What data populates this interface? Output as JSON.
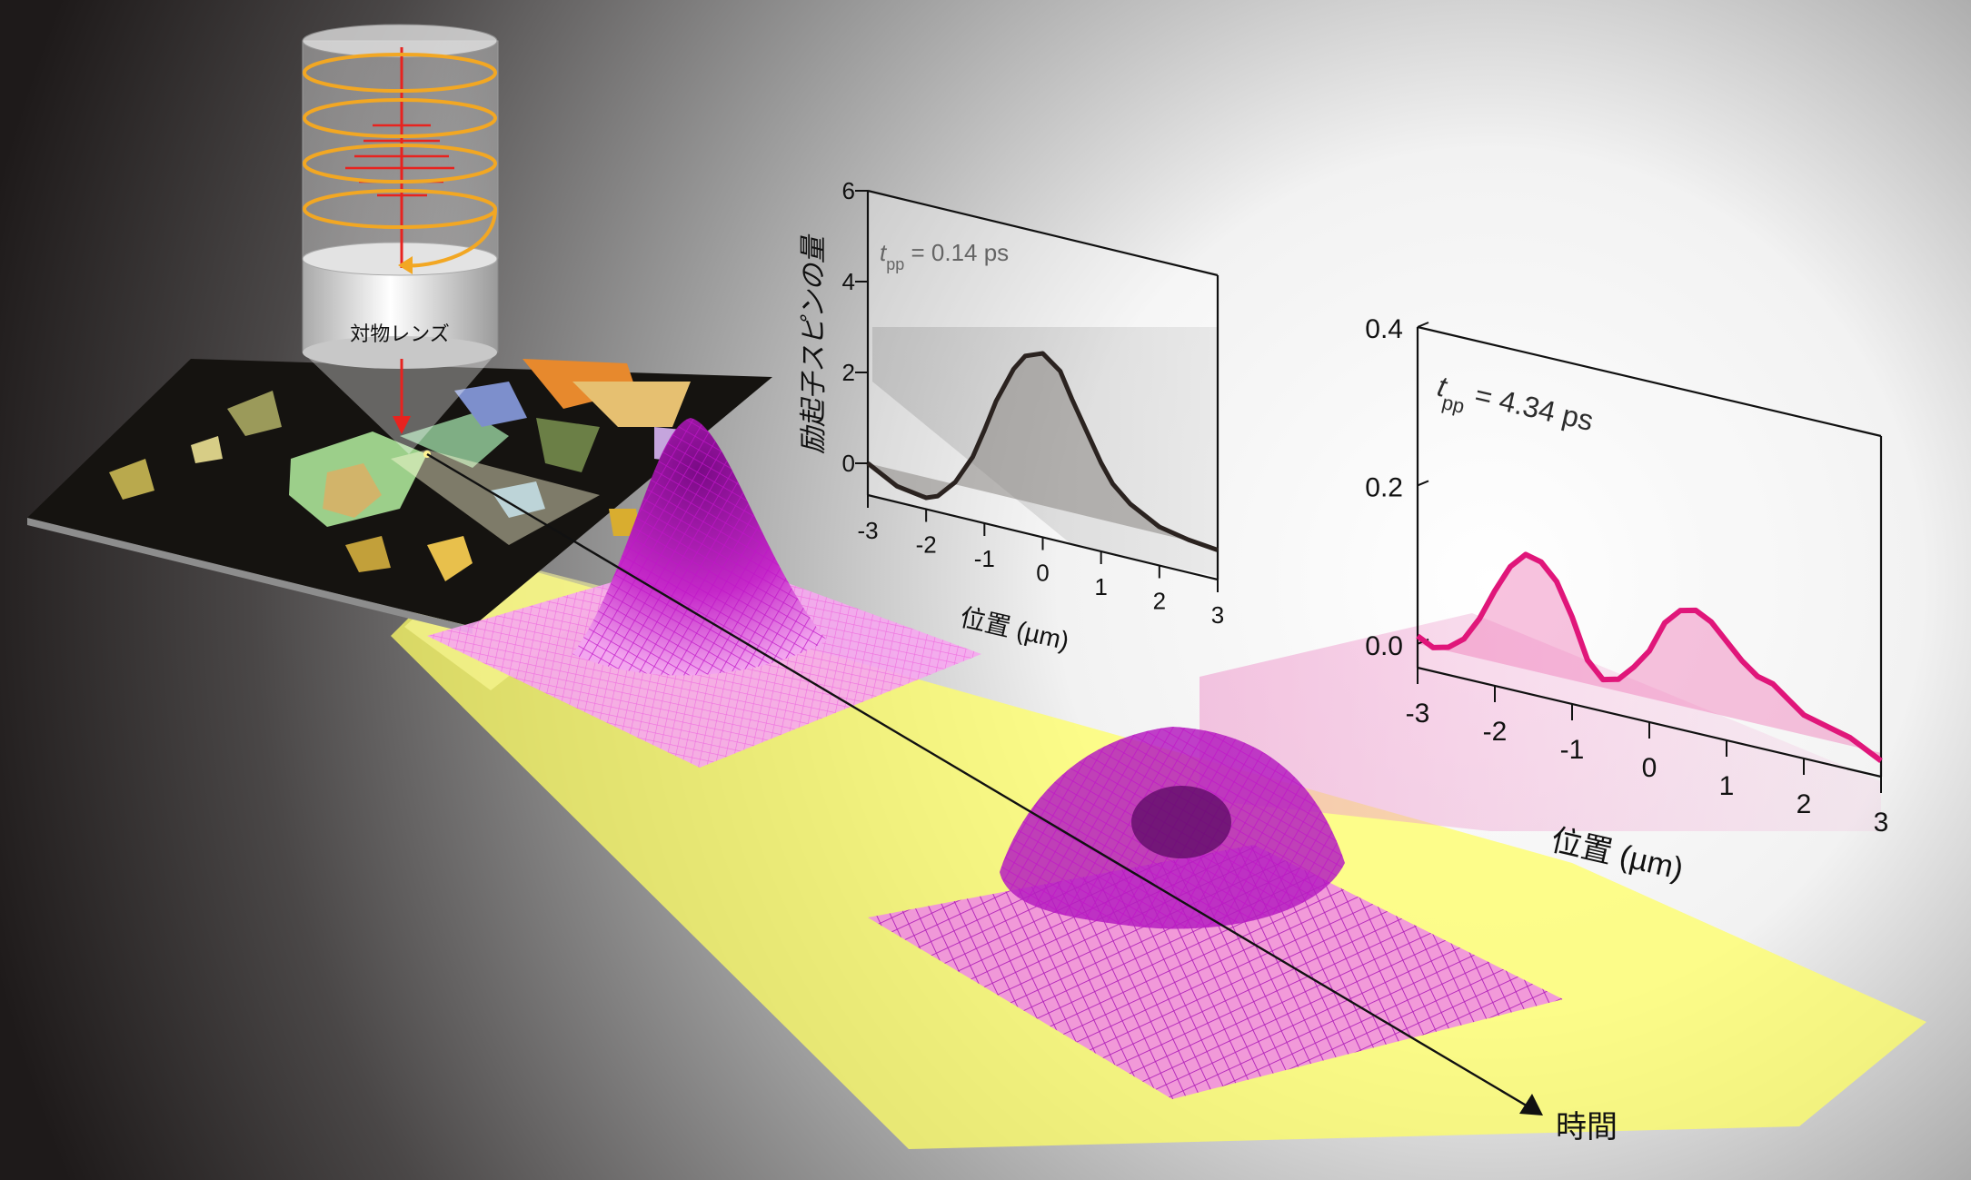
{
  "lens": {
    "label": "対物レンズ"
  },
  "time_axis": {
    "label": "時間"
  },
  "chart_data": [
    {
      "type": "line",
      "annotation": {
        "t_symbol": "t",
        "t_sub": "pp",
        "value_text": " = 0.14 ps"
      },
      "ylabel": "励起子スピンの量",
      "xlabel": "位置 (µm)",
      "xlim": [
        -3,
        3
      ],
      "ylim": [
        -0.7,
        6
      ],
      "xticks": [
        -3,
        -2,
        -1,
        0,
        1,
        2,
        3
      ],
      "yticks": [
        0,
        2,
        4,
        6
      ],
      "line_color": "#2b2320",
      "fill_color": "#8a8784",
      "x": [
        -3,
        -2.5,
        -2,
        -1.8,
        -1.5,
        -1.2,
        -1,
        -0.8,
        -0.5,
        -0.3,
        0,
        0.3,
        0.5,
        0.8,
        1,
        1.2,
        1.5,
        2,
        2.5,
        3
      ],
      "y": [
        0,
        -0.35,
        -0.45,
        -0.35,
        0.05,
        0.7,
        1.35,
        2.05,
        2.85,
        3.2,
        3.35,
        3.05,
        2.5,
        1.75,
        1.25,
        0.85,
        0.5,
        0.15,
        0.02,
        -0.05
      ]
    },
    {
      "type": "line",
      "annotation": {
        "t_symbol": "t",
        "t_sub": "pp",
        "value_text": " = 4.34 ps"
      },
      "ylabel": "",
      "xlabel": "位置 (µm)",
      "xlim": [
        -3,
        3
      ],
      "ylim": [
        -0.03,
        0.4
      ],
      "xticks": [
        -3,
        -2,
        -1,
        0,
        1,
        2,
        3
      ],
      "yticks": [
        0.0,
        0.2,
        0.4
      ],
      "ytick_labels": [
        "0.0",
        "0.2",
        "0.4"
      ],
      "line_color": "#e0167a",
      "fill_color": "#f07ab8",
      "x": [
        -3,
        -2.8,
        -2.6,
        -2.4,
        -2.2,
        -2,
        -1.8,
        -1.6,
        -1.4,
        -1.2,
        -1,
        -0.8,
        -0.6,
        -0.4,
        -0.2,
        0,
        0.2,
        0.4,
        0.6,
        0.8,
        1,
        1.2,
        1.4,
        1.6,
        1.8,
        2,
        2.2,
        2.4,
        2.6,
        2.8,
        3
      ],
      "y": [
        0.01,
        0.0,
        0.005,
        0.02,
        0.05,
        0.09,
        0.125,
        0.145,
        0.14,
        0.12,
        0.08,
        0.03,
        0.01,
        0.015,
        0.035,
        0.06,
        0.1,
        0.12,
        0.125,
        0.115,
        0.095,
        0.075,
        0.06,
        0.055,
        0.04,
        0.025,
        0.02,
        0.015,
        0.01,
        0.0,
        -0.01
      ]
    }
  ]
}
